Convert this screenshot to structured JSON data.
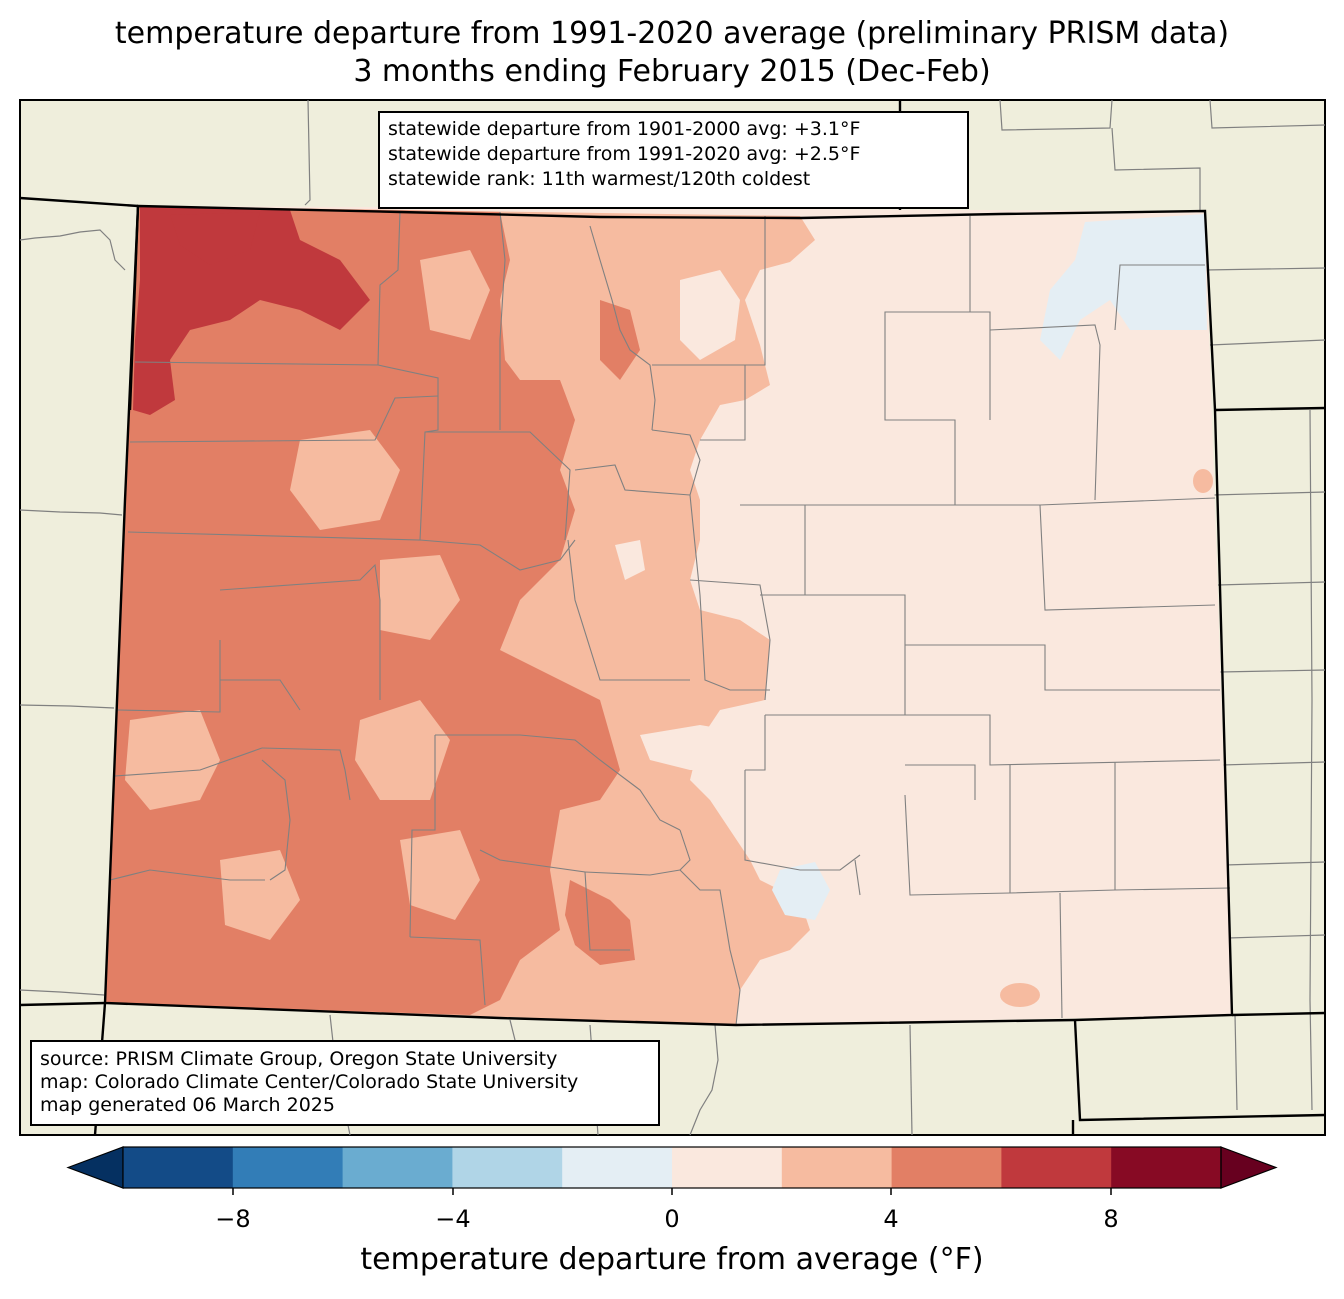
{
  "title": {
    "line1": "temperature departure from 1991-2020 average (preliminary PRISM data)",
    "line2": "3 months ending February 2015 (Dec-Feb)"
  },
  "stats": {
    "line1": "statewide departure from 1901-2000 avg: +3.1°F",
    "line2": "statewide departure from 1991-2020 avg: +2.5°F",
    "line3": "statewide rank: 11th warmest/120th coldest"
  },
  "source": {
    "line1": "source: PRISM Climate Group, Oregon State University",
    "line2": "map: Colorado Climate Center/Colorado State University",
    "line3": "map generated 06 March 2025"
  },
  "colorbar": {
    "label": "temperature departure from average (°F)",
    "ticks": [
      "−8",
      "−4",
      "0",
      "4",
      "8"
    ],
    "bins": [
      {
        "range": "< -10",
        "color": "#053061"
      },
      {
        "range": "-10 to -8",
        "color": "#134b87"
      },
      {
        "range": "-8 to -6",
        "color": "#327db7"
      },
      {
        "range": "-6 to -4",
        "color": "#6aacd0"
      },
      {
        "range": "-4 to -2",
        "color": "#b0d5e7"
      },
      {
        "range": "-2 to 0",
        "color": "#e4eef4"
      },
      {
        "range": "0 to 2",
        "color": "#fae8de"
      },
      {
        "range": "2 to 4",
        "color": "#f6bba0"
      },
      {
        "range": "4 to 6",
        "color": "#e27f65"
      },
      {
        "range": "6 to 8",
        "color": "#c0393d"
      },
      {
        "range": "8 to 10",
        "color": "#870a24"
      },
      {
        "range": "> 10",
        "color": "#67001f"
      }
    ]
  },
  "colors": {
    "background_land": "#efeedc",
    "state_outline": "#000000",
    "county_lines": "#808080"
  }
}
